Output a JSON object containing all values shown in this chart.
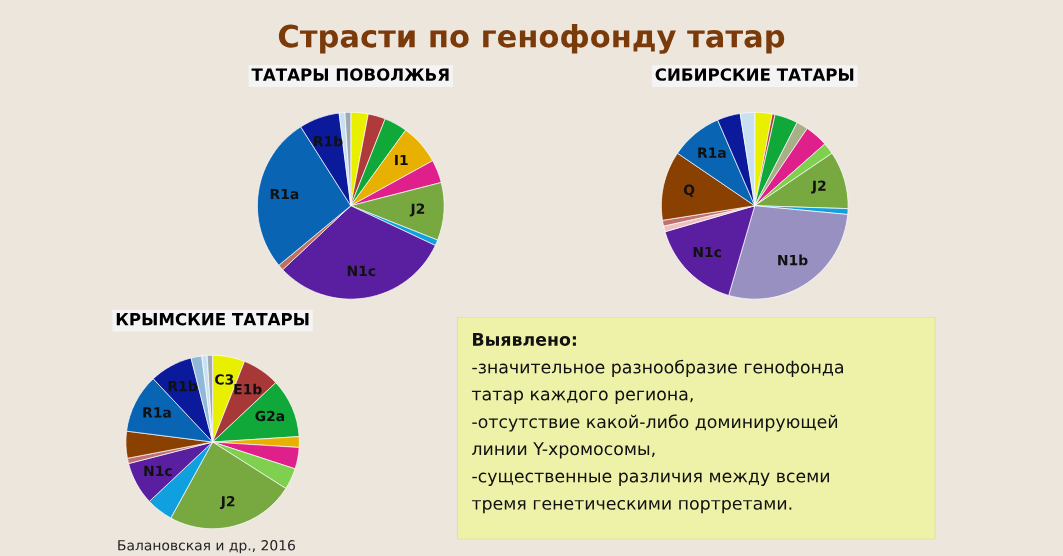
{
  "chart_data": [
    {
      "type": "pie",
      "title": "ТАТАРЫ ПОВОЛЖЬЯ",
      "categories": [
        null,
        null,
        null,
        "I1",
        null,
        "J2",
        null,
        "N1c",
        null,
        "R1a",
        "R1b",
        null,
        null
      ],
      "values": [
        3,
        3,
        4,
        7,
        4,
        10,
        1,
        31,
        1,
        27,
        7,
        1,
        1
      ],
      "colors": [
        "#e8f000",
        "#b03a3a",
        "#10a838",
        "#e8b000",
        "#e0208a",
        "#78a840",
        "#10a0e0",
        "#5a1ea0",
        "#c07060",
        "#0a64b4",
        "#0a1a9a",
        "#c8e0f0",
        "#a0a8b0"
      ]
    },
    {
      "type": "pie",
      "title": "СИБИРСКИЕ ТАТАРЫ",
      "categories": [
        null,
        null,
        null,
        null,
        null,
        null,
        "J2",
        null,
        "N1b",
        "N1c",
        null,
        null,
        "Q",
        "R1a",
        null,
        null
      ],
      "values": [
        3,
        0.5,
        4,
        2,
        4,
        2,
        10,
        1,
        28,
        16,
        1,
        1,
        12,
        9,
        4,
        2.5
      ],
      "colors": [
        "#e8f000",
        "#b03a3a",
        "#10a838",
        "#a8b088",
        "#e0208a",
        "#80d050",
        "#78a840",
        "#10a0e0",
        "#9890c0",
        "#5a1ea0",
        "#f0c0c0",
        "#c07070",
        "#8a4000",
        "#0a64b4",
        "#0a1a9a",
        "#c8e0f0"
      ]
    },
    {
      "type": "pie",
      "title": "КРЫМСКИЕ ТАТАРЫ",
      "categories": [
        "C3",
        "E1b",
        "G2a",
        null,
        null,
        null,
        "J2",
        null,
        "N1c",
        null,
        null,
        "R1a",
        "R1b",
        null,
        null,
        null
      ],
      "values": [
        6,
        7,
        11,
        2,
        4,
        4,
        24,
        5,
        8,
        1,
        5,
        11,
        8,
        2,
        1,
        1
      ],
      "colors": [
        "#e8f000",
        "#a83838",
        "#10a838",
        "#e8b000",
        "#e0208a",
        "#80d050",
        "#78a840",
        "#10a0e0",
        "#5a1ea0",
        "#c07070",
        "#8a4000",
        "#0a64b4",
        "#0a1a9a",
        "#90b8d8",
        "#c8e0f0",
        "#a0a8b0"
      ]
    },
    {
      "type": "other",
      "title": "Страсти по генофонду татар",
      "annotations": [
        "Выявлено:",
        "-значительное разнообразие генофонда",
        "татар каждого региона,",
        "-отсутствие какой-либо доминирующей",
        "линии Y-хромосомы,",
        "-существенные различия между всеми",
        "тремя генетическими портретами.",
        "Балановская и др., 2016"
      ]
    }
  ]
}
